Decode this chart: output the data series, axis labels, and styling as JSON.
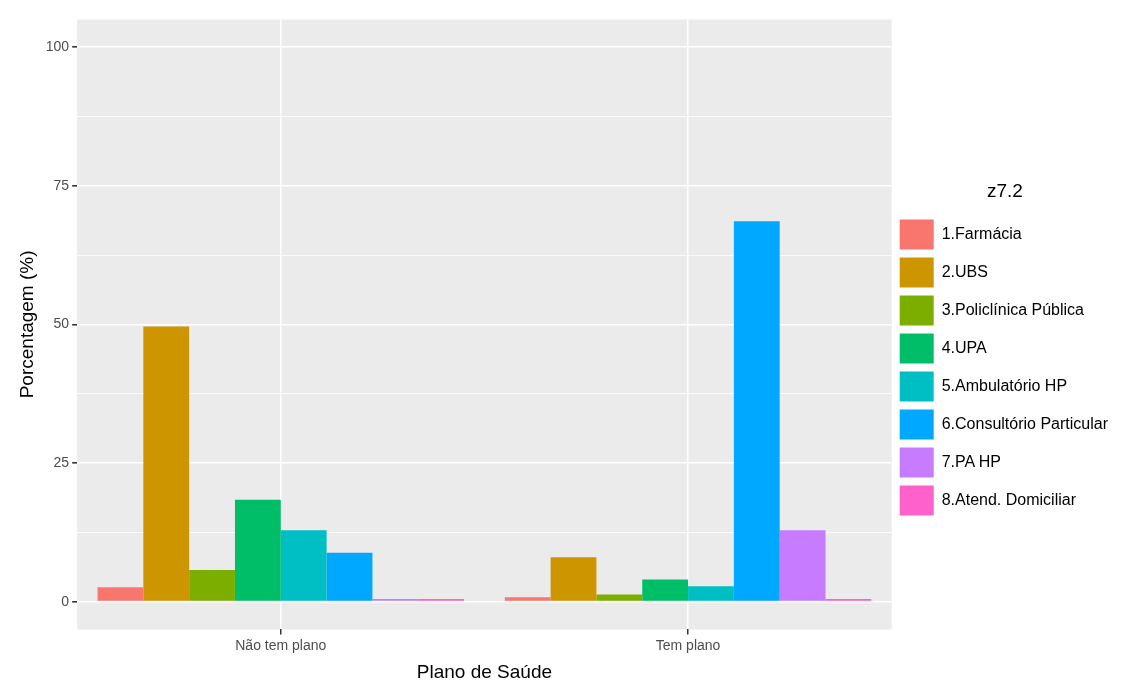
{
  "chart_data": {
    "type": "bar",
    "xlabel": "Plano de Saúde",
    "ylabel": "Porcentagem (%)",
    "legend_title": "z7.2",
    "categories": [
      "Não tem plano",
      "Tem plano"
    ],
    "series": [
      {
        "name": "1.Farmácia",
        "color": "#f8766d",
        "values": [
          2.6,
          0.8
        ]
      },
      {
        "name": "2.UBS",
        "color": "#cd9600",
        "values": [
          49.6,
          8.0
        ]
      },
      {
        "name": "3.Policlínica Pública",
        "color": "#7cae00",
        "values": [
          5.7,
          1.3
        ]
      },
      {
        "name": "4.UPA",
        "color": "#00be67",
        "values": [
          18.4,
          4.0
        ]
      },
      {
        "name": "5.Ambulatório HP",
        "color": "#00bfc4",
        "values": [
          12.9,
          2.8
        ]
      },
      {
        "name": "6.Consultório Particular",
        "color": "#00a9ff",
        "values": [
          8.8,
          68.6
        ]
      },
      {
        "name": "7.PA HP",
        "color": "#c77cff",
        "values": [
          0.5,
          12.9
        ]
      },
      {
        "name": "8.Atend. Domiciliar",
        "color": "#ff61cc",
        "values": [
          0.5,
          0.5
        ]
      }
    ],
    "ylim": [
      -5,
      105
    ],
    "yticks": [
      0,
      {
        "value": 12.5,
        "label": null
      },
      25,
      {
        "value": 37.5,
        "label": null
      },
      50,
      {
        "value": 62.5,
        "label": null
      },
      75,
      {
        "value": 87.5,
        "label": null
      },
      100
    ],
    "grid": true,
    "legend": "right"
  }
}
